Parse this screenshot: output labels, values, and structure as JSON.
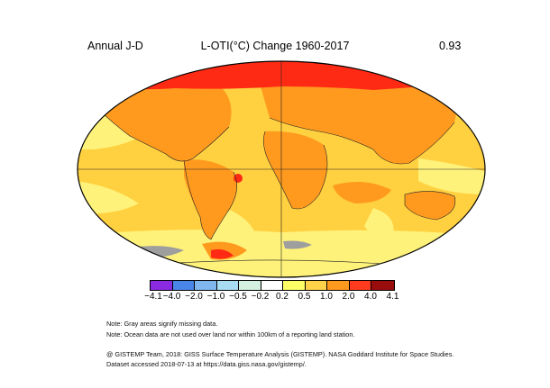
{
  "header": {
    "period": "Annual J-D",
    "title": "L-OTI(°C) Change 1960-2017",
    "global_mean": "0.93"
  },
  "legend": {
    "ticks": [
      "−4.1",
      "−4.0",
      "−2.0",
      "−1.0",
      "−0.5",
      "−0.2",
      "0.2",
      "0.5",
      "1.0",
      "2.0",
      "4.0",
      "4.1"
    ],
    "colors": [
      "#8a2be2",
      "#4a86e8",
      "#7fb6ee",
      "#a8dcf3",
      "#d4f0e0",
      "#ffffff",
      "#ffff66",
      "#ffd24a",
      "#ff9a1f",
      "#ff3b1f",
      "#9a0d0d"
    ]
  },
  "map_colors": {
    "ocean_base": "#ffd040",
    "warm": "#ff9a1f",
    "hot": "#ff2a14",
    "mild": "#fff27a",
    "missing": "#9e9e9e"
  },
  "notes": {
    "line1": "Note: Gray areas signify missing data.",
    "line2": "Note: Ocean data are not used over land nor within 100km of a reporting land station."
  },
  "credit": {
    "line1": "@ GISTEMP Team, 2018: GISS Surface Temperature Analysis (GISTEMP). NASA Goddard Institute for Space Studies.",
    "line2": "Dataset accessed 2018-07-13 at https://data.giss.nasa.gov/gistemp/."
  }
}
